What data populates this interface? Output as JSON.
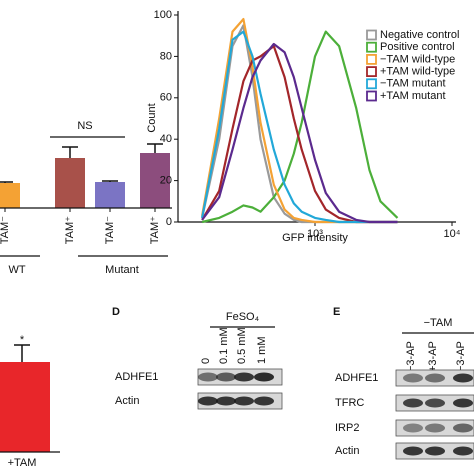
{
  "chart_data": [
    {
      "type": "bar",
      "categories": [
        "TAM⁻",
        "TAM⁺",
        "TAM⁻",
        "TAM⁺"
      ],
      "values": [
        25,
        50,
        26,
        55
      ],
      "errors": [
        1,
        11,
        1,
        9
      ],
      "colors": [
        "#f4a234",
        "#a8514a",
        "#7b74c4",
        "#8c4d7d"
      ],
      "groups": [
        "WT",
        "Mutant"
      ],
      "annotation": "NS"
    },
    {
      "type": "line",
      "ylabel": "Count",
      "xlabel": "GFP intensity",
      "xscale": "log",
      "xlim": [
        100,
        10000
      ],
      "ylim": [
        0,
        100
      ],
      "xticks": [
        {
          "value": 1000,
          "label": "10³"
        },
        {
          "value": 10000,
          "label": "10⁴"
        }
      ],
      "yticks": [
        0,
        20,
        40,
        60,
        80,
        100
      ],
      "x": [
        150,
        200,
        250,
        300,
        350,
        400,
        500,
        600,
        700,
        800,
        1000,
        1200,
        1500,
        2000,
        2500,
        3000,
        4000
      ],
      "series": [
        {
          "name": "Negative control",
          "color": "#9a9a9a",
          "values": [
            2,
            40,
            85,
            95,
            70,
            40,
            12,
            4,
            1,
            0,
            0,
            0,
            0,
            0,
            0,
            0,
            0
          ]
        },
        {
          "name": "Positive control",
          "color": "#4caf3a",
          "values": [
            0,
            2,
            5,
            8,
            7,
            5,
            12,
            20,
            33,
            48,
            80,
            92,
            85,
            55,
            25,
            10,
            2
          ]
        },
        {
          "name": "−TAM wild-type",
          "color": "#f4a234",
          "values": [
            3,
            50,
            92,
            98,
            75,
            48,
            18,
            6,
            2,
            1,
            0,
            0,
            0,
            0,
            0,
            0,
            0
          ]
        },
        {
          "name": "+TAM wild-type",
          "color": "#a3262a",
          "values": [
            1,
            15,
            45,
            68,
            78,
            80,
            85,
            70,
            50,
            35,
            15,
            6,
            2,
            0,
            0,
            0,
            0
          ]
        },
        {
          "name": "−TAM mutant",
          "color": "#22a8d8",
          "values": [
            2,
            45,
            88,
            92,
            80,
            62,
            35,
            18,
            9,
            5,
            2,
            1,
            0,
            0,
            0,
            0,
            0
          ]
        },
        {
          "name": "+TAM mutant",
          "color": "#5b2a8e",
          "values": [
            1,
            12,
            35,
            55,
            70,
            78,
            86,
            82,
            70,
            55,
            30,
            14,
            5,
            1,
            0,
            0,
            0
          ]
        }
      ]
    },
    {
      "type": "bar",
      "categories": [
        "+TAM"
      ],
      "values": [
        90
      ],
      "errors": [
        17
      ],
      "colors": [
        "#e8262a"
      ],
      "annotation": "*"
    }
  ],
  "panel_d": {
    "letter": "D",
    "treatment": "FeSO₄",
    "lanes": [
      "0",
      "0.1 mM",
      "0.5 mM",
      "1 mM"
    ],
    "rows": [
      "ADHFE1",
      "Actin"
    ]
  },
  "panel_e": {
    "letter": "E",
    "group": "−TAM",
    "lanes": [
      "−3-AP",
      "+3-AP",
      "−3-AP"
    ],
    "rows": [
      "ADHFE1",
      "TFRC",
      "IRP2",
      "Actin"
    ]
  }
}
